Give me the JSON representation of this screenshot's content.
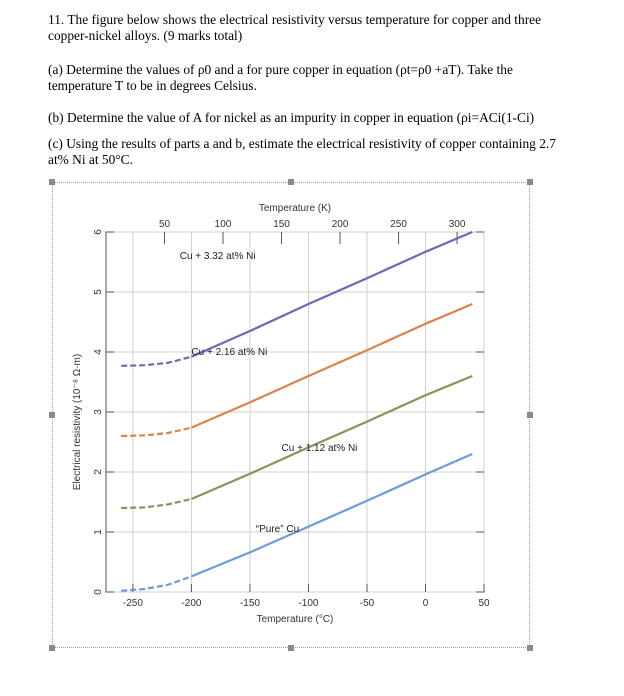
{
  "question": {
    "heading_1": "11. The figure below shows the electrical resistivity versus temperature for copper and three",
    "heading_2": "copper-nickel alloys. (9 marks total)",
    "part_a_1": "(a) Determine the values of ρ0 and a for pure copper in equation (ρt=ρ0 +aT). Take the",
    "part_a_2": "temperature T to be in degrees Celsius.",
    "part_b": "(b) Determine the value of A for nickel as an impurity in copper in equation (ρi=ACi(1-Ci)",
    "part_c_1": "(c) Using the results of parts a and b, estimate the electrical resistivity of copper containing 2.7",
    "part_c_2": "at% Ni at 50°C."
  },
  "chart_data": {
    "type": "line",
    "top_axis_label": "Temperature (K)",
    "top_ticks": [
      "50",
      "100",
      "150",
      "200",
      "250",
      "300"
    ],
    "top_tick_values": [
      50,
      100,
      150,
      200,
      250,
      300
    ],
    "xlabel": "Temperature (°C)",
    "x_ticks": [
      "-250",
      "-200",
      "-150",
      "-100",
      "-50",
      "0",
      "50"
    ],
    "x_tick_values": [
      -250,
      -200,
      -150,
      -100,
      -50,
      0,
      50
    ],
    "xlim": [
      -273,
      50
    ],
    "ylabel": "Electrical resistivity (10⁻⁸ Ω·m)",
    "y_ticks": [
      "0",
      "1",
      "2",
      "3",
      "4",
      "5",
      "6"
    ],
    "y_tick_values": [
      0,
      1,
      2,
      3,
      4,
      5,
      6
    ],
    "ylim": [
      0,
      6
    ],
    "grid": true,
    "series": [
      {
        "name": "Cu + 3.32 at% Ni",
        "color": "#6a6ab8",
        "x": [
          -260,
          -240,
          -220,
          -200,
          -150,
          -100,
          -50,
          0,
          40
        ],
        "y": [
          3.77,
          3.78,
          3.82,
          3.92,
          4.35,
          4.8,
          5.23,
          5.67,
          6.0
        ]
      },
      {
        "name": "Cu + 2.16 at% Ni",
        "color": "#d9844a",
        "x": [
          -260,
          -240,
          -220,
          -200,
          -150,
          -100,
          -50,
          0,
          40
        ],
        "y": [
          2.6,
          2.61,
          2.65,
          2.74,
          3.16,
          3.6,
          4.03,
          4.47,
          4.8
        ]
      },
      {
        "name": "Cu + 1.12 at% Ni",
        "color": "#8f8f5a",
        "x": [
          -260,
          -240,
          -220,
          -200,
          -150,
          -100,
          -50,
          0,
          40
        ],
        "y": [
          1.4,
          1.41,
          1.46,
          1.55,
          1.97,
          2.41,
          2.84,
          3.28,
          3.6
        ]
      },
      {
        "name": "“Pure” Cu",
        "color": "#6d9bdd",
        "x": [
          -260,
          -240,
          -220,
          -200,
          -150,
          -100,
          -50,
          0,
          40
        ],
        "y": [
          0.02,
          0.05,
          0.12,
          0.26,
          0.66,
          1.09,
          1.52,
          1.96,
          2.3
        ]
      }
    ]
  }
}
